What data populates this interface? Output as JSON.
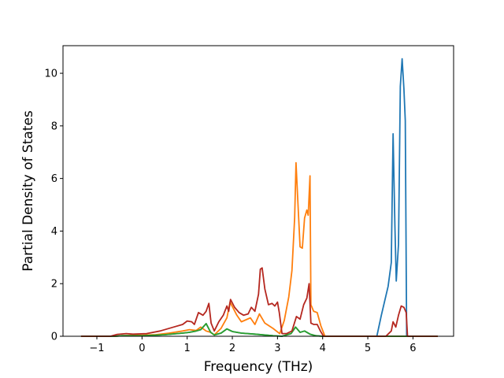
{
  "chart_data": {
    "type": "line",
    "title": "",
    "xlabel": "Frequency (THz)",
    "ylabel": "Partial Density of States",
    "xlim": [
      -1.75,
      6.9
    ],
    "ylim": [
      0,
      11.05
    ],
    "x_ticks": [
      -1,
      0,
      1,
      2,
      3,
      4,
      5,
      6
    ],
    "x_tick_labels": [
      "−1",
      "0",
      "1",
      "2",
      "3",
      "4",
      "5",
      "6"
    ],
    "y_ticks": [
      0,
      2,
      4,
      6,
      8,
      10
    ],
    "y_tick_labels": [
      "0",
      "2",
      "4",
      "6",
      "8",
      "10"
    ],
    "grid": false,
    "legend": "none",
    "series": [
      {
        "color": "#1f77b4",
        "points": [
          [
            -1.35,
            0
          ],
          [
            -0.6,
            0
          ],
          [
            -0.45,
            0.02
          ],
          [
            0,
            0.02
          ],
          [
            0.5,
            0.06
          ],
          [
            0.9,
            0.12
          ],
          [
            1.05,
            0.15
          ],
          [
            1.2,
            0.2
          ],
          [
            1.3,
            0.25
          ],
          [
            1.42,
            0.48
          ],
          [
            1.52,
            0.15
          ],
          [
            1.6,
            0.05
          ],
          [
            1.75,
            0.12
          ],
          [
            1.88,
            0.28
          ],
          [
            2.0,
            0.18
          ],
          [
            2.2,
            0.12
          ],
          [
            2.5,
            0.08
          ],
          [
            2.9,
            0.02
          ],
          [
            3.1,
            0
          ],
          [
            3.3,
            0.1
          ],
          [
            3.4,
            0.35
          ],
          [
            3.5,
            0.15
          ],
          [
            3.6,
            0.2
          ],
          [
            3.72,
            0.08
          ],
          [
            3.85,
            0.02
          ],
          [
            4.0,
            0
          ],
          [
            5.2,
            0
          ],
          [
            5.3,
            0.8
          ],
          [
            5.45,
            1.9
          ],
          [
            5.52,
            2.8
          ],
          [
            5.56,
            7.7
          ],
          [
            5.6,
            4.2
          ],
          [
            5.63,
            2.1
          ],
          [
            5.68,
            3.5
          ],
          [
            5.72,
            9.5
          ],
          [
            5.76,
            10.55
          ],
          [
            5.8,
            9.4
          ],
          [
            5.83,
            8.2
          ],
          [
            5.86,
            0
          ],
          [
            6.55,
            0
          ]
        ]
      },
      {
        "color": "#ff7f0e",
        "points": [
          [
            -1.35,
            0
          ],
          [
            -0.6,
            0
          ],
          [
            -0.45,
            0.02
          ],
          [
            0,
            0.04
          ],
          [
            0.3,
            0.06
          ],
          [
            0.6,
            0.12
          ],
          [
            0.9,
            0.2
          ],
          [
            1.05,
            0.25
          ],
          [
            1.2,
            0.22
          ],
          [
            1.3,
            0.35
          ],
          [
            1.42,
            0.2
          ],
          [
            1.52,
            0.15
          ],
          [
            1.6,
            0.05
          ],
          [
            1.75,
            0.3
          ],
          [
            1.88,
            0.7
          ],
          [
            1.95,
            1.3
          ],
          [
            2.1,
            0.8
          ],
          [
            2.2,
            0.55
          ],
          [
            2.4,
            0.7
          ],
          [
            2.5,
            0.45
          ],
          [
            2.6,
            0.85
          ],
          [
            2.72,
            0.5
          ],
          [
            2.9,
            0.3
          ],
          [
            3.05,
            0.1
          ],
          [
            3.15,
            0.6
          ],
          [
            3.25,
            1.5
          ],
          [
            3.32,
            2.5
          ],
          [
            3.38,
            4.5
          ],
          [
            3.41,
            6.6
          ],
          [
            3.46,
            4.8
          ],
          [
            3.5,
            3.4
          ],
          [
            3.55,
            3.35
          ],
          [
            3.6,
            4.5
          ],
          [
            3.65,
            4.8
          ],
          [
            3.68,
            4.6
          ],
          [
            3.72,
            6.1
          ],
          [
            3.74,
            1.2
          ],
          [
            3.8,
            0.95
          ],
          [
            3.88,
            0.9
          ],
          [
            3.96,
            0.4
          ],
          [
            4.05,
            0
          ],
          [
            6.55,
            0
          ]
        ]
      },
      {
        "color": "#2ca02c",
        "points": [
          [
            -1.35,
            0
          ],
          [
            -0.6,
            0
          ],
          [
            -0.45,
            0.02
          ],
          [
            0,
            0.02
          ],
          [
            0.5,
            0.06
          ],
          [
            0.9,
            0.12
          ],
          [
            1.05,
            0.15
          ],
          [
            1.2,
            0.2
          ],
          [
            1.3,
            0.25
          ],
          [
            1.42,
            0.48
          ],
          [
            1.52,
            0.15
          ],
          [
            1.6,
            0.05
          ],
          [
            1.75,
            0.12
          ],
          [
            1.88,
            0.28
          ],
          [
            2.0,
            0.18
          ],
          [
            2.2,
            0.12
          ],
          [
            2.5,
            0.08
          ],
          [
            2.9,
            0.02
          ],
          [
            3.1,
            0
          ],
          [
            3.3,
            0.1
          ],
          [
            3.4,
            0.35
          ],
          [
            3.5,
            0.15
          ],
          [
            3.6,
            0.2
          ],
          [
            3.72,
            0.08
          ],
          [
            3.85,
            0.02
          ],
          [
            4.0,
            0
          ],
          [
            6.55,
            0
          ]
        ]
      },
      {
        "color": "#b5271f",
        "points": [
          [
            -1.35,
            0
          ],
          [
            -0.7,
            0
          ],
          [
            -0.55,
            0.07
          ],
          [
            -0.35,
            0.1
          ],
          [
            -0.2,
            0.08
          ],
          [
            0.1,
            0.1
          ],
          [
            0.4,
            0.2
          ],
          [
            0.7,
            0.35
          ],
          [
            0.9,
            0.45
          ],
          [
            1.0,
            0.58
          ],
          [
            1.1,
            0.55
          ],
          [
            1.16,
            0.45
          ],
          [
            1.25,
            0.9
          ],
          [
            1.35,
            0.8
          ],
          [
            1.42,
            0.95
          ],
          [
            1.48,
            1.25
          ],
          [
            1.53,
            0.5
          ],
          [
            1.6,
            0.2
          ],
          [
            1.7,
            0.55
          ],
          [
            1.8,
            0.8
          ],
          [
            1.88,
            1.15
          ],
          [
            1.92,
            0.95
          ],
          [
            1.96,
            1.4
          ],
          [
            2.05,
            1.1
          ],
          [
            2.15,
            0.9
          ],
          [
            2.25,
            0.8
          ],
          [
            2.35,
            0.85
          ],
          [
            2.42,
            1.1
          ],
          [
            2.5,
            0.95
          ],
          [
            2.58,
            1.6
          ],
          [
            2.62,
            2.55
          ],
          [
            2.66,
            2.6
          ],
          [
            2.72,
            1.8
          ],
          [
            2.8,
            1.2
          ],
          [
            2.88,
            1.25
          ],
          [
            2.94,
            1.15
          ],
          [
            3.0,
            1.3
          ],
          [
            3.04,
            0.9
          ],
          [
            3.1,
            0.1
          ],
          [
            3.2,
            0.1
          ],
          [
            3.32,
            0.2
          ],
          [
            3.42,
            0.75
          ],
          [
            3.5,
            0.65
          ],
          [
            3.58,
            1.2
          ],
          [
            3.65,
            1.45
          ],
          [
            3.7,
            2.0
          ],
          [
            3.74,
            0.5
          ],
          [
            3.8,
            0.45
          ],
          [
            3.88,
            0.45
          ],
          [
            3.95,
            0.2
          ],
          [
            4.02,
            0
          ],
          [
            5.4,
            0
          ],
          [
            5.52,
            0.2
          ],
          [
            5.56,
            0.55
          ],
          [
            5.62,
            0.35
          ],
          [
            5.68,
            0.8
          ],
          [
            5.74,
            1.15
          ],
          [
            5.8,
            1.1
          ],
          [
            5.85,
            0.9
          ],
          [
            5.88,
            0
          ],
          [
            6.55,
            0
          ]
        ]
      }
    ]
  }
}
